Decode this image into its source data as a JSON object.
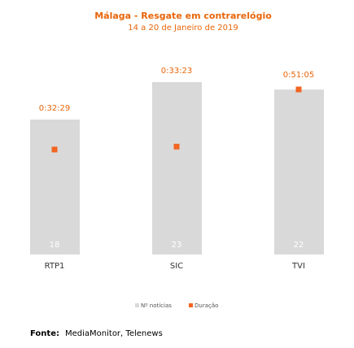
{
  "chart_data": {
    "type": "bar-dot",
    "title": "Málaga - Resgate em contrarelógio",
    "subtitle": "14 a 20 de Janeiro de 2019",
    "categories": [
      "RTP1",
      "SIC",
      "TVI"
    ],
    "series": [
      {
        "name": "Nº notícias",
        "color": "#d9d9d9",
        "values": [
          18,
          23,
          22
        ]
      },
      {
        "name": "Duração",
        "color": "#f26522",
        "axis": "y2",
        "values": [
          1949,
          2003,
          3065
        ],
        "value_labels": [
          "0:32:29",
          "0:33:23",
          "0:51:05"
        ]
      }
    ],
    "ylim": [
      0,
      25
    ],
    "y2lim": [
      0,
      3480
    ],
    "source_label": "Fonte:",
    "source": "MediaMonitor, Telenews"
  }
}
